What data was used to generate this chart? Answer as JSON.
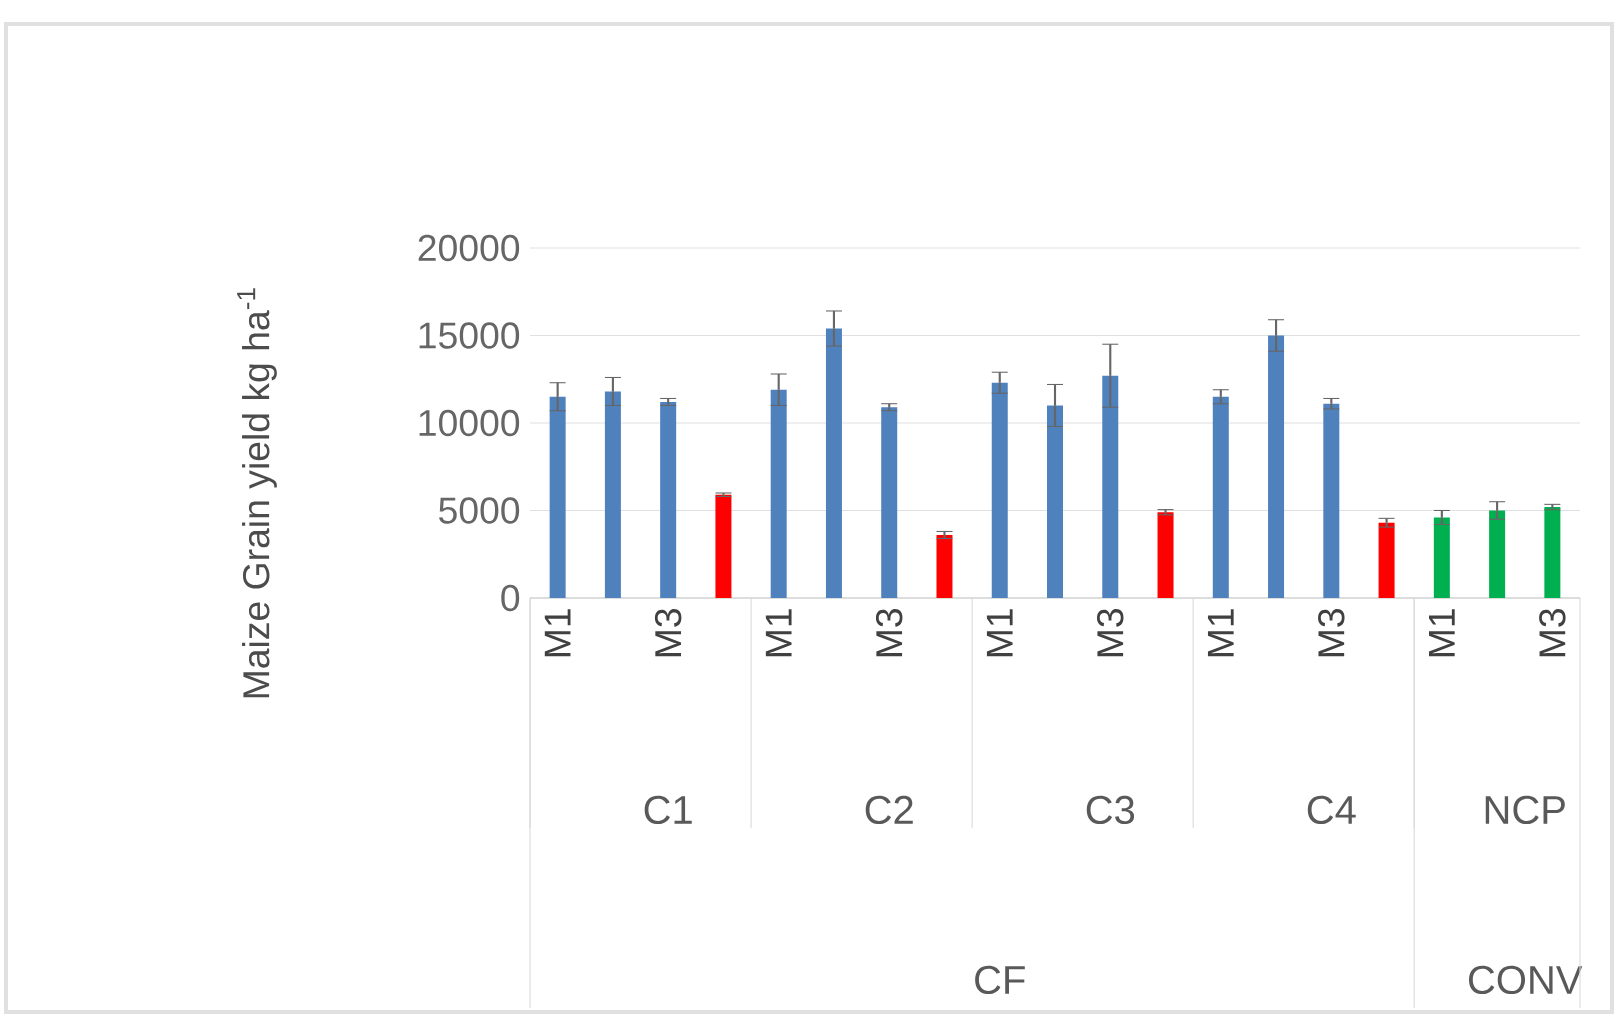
{
  "chart_data": {
    "type": "bar",
    "ylabel": "Maize Grain yield kg ha$^{-1}$",
    "categories": [
      "M1",
      null,
      "M3",
      null,
      "M1",
      null,
      "M3",
      null,
      "M1",
      null,
      "M3",
      null,
      "M1",
      null,
      "M3",
      null,
      "M1",
      null,
      "M3"
    ],
    "values": [
      11500,
      11800,
      11200,
      5900,
      11900,
      15400,
      10900,
      3600,
      12300,
      11000,
      12700,
      4900,
      11500,
      15000,
      11100,
      4300,
      4600,
      5000,
      5200
    ],
    "errors": [
      800,
      800,
      200,
      100,
      900,
      1000,
      200,
      200,
      600,
      1200,
      1800,
      150,
      400,
      900,
      300,
      250,
      400,
      500,
      150
    ],
    "colors": [
      "#4f81bd",
      "#4f81bd",
      "#4f81bd",
      "#ff0000",
      "#4f81bd",
      "#4f81bd",
      "#4f81bd",
      "#ff0000",
      "#4f81bd",
      "#4f81bd",
      "#4f81bd",
      "#ff0000",
      "#4f81bd",
      "#4f81bd",
      "#4f81bd",
      "#ff0000",
      "#00b050",
      "#00b050",
      "#00b050"
    ],
    "ylim": [
      0,
      20000
    ],
    "yticks": [
      0,
      5000,
      10000,
      15000,
      20000
    ],
    "grid": "y",
    "annotations": [
      "C1",
      "C2",
      "C3",
      "C4",
      "NCP",
      "CF",
      "CONV"
    ]
  }
}
